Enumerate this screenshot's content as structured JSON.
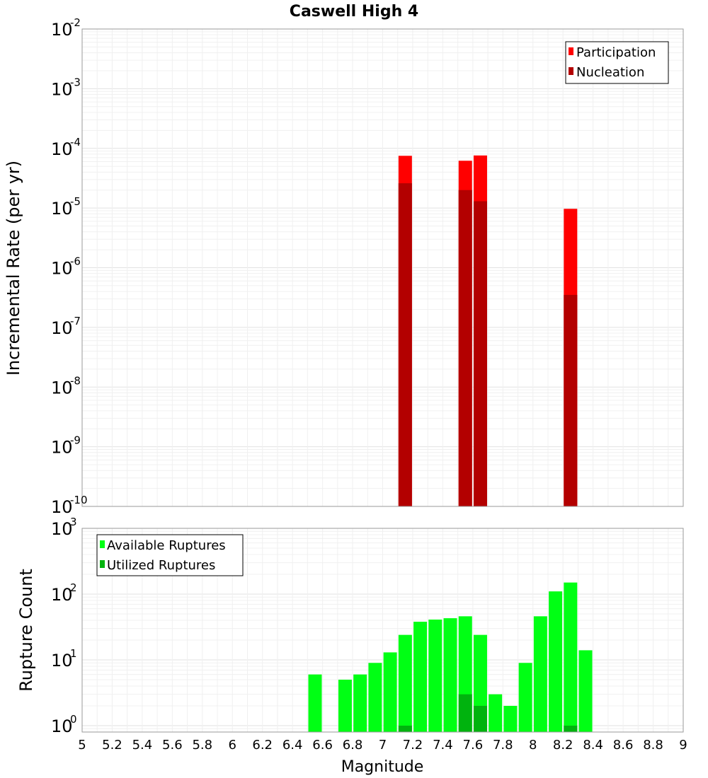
{
  "title": "Caswell High 4",
  "chart_data": [
    {
      "type": "bar",
      "ylabel": "Incremental Rate (per yr)",
      "yscale": "log",
      "ylim": [
        1e-10,
        0.01
      ],
      "xlim": [
        5,
        9
      ],
      "grid": true,
      "legend_position": "top-right",
      "series": [
        {
          "name": "Participation",
          "color": "#ff0000",
          "x": [
            7.15,
            7.55,
            7.65,
            8.25
          ],
          "values": [
            7.5e-05,
            6.2e-05,
            7.6e-05,
            9.7e-06
          ]
        },
        {
          "name": "Nucleation",
          "color": "#b30000",
          "x": [
            7.15,
            7.55,
            7.65,
            8.25
          ],
          "values": [
            2.6e-05,
            2e-05,
            1.3e-05,
            3.5e-07
          ]
        }
      ],
      "yticks": [
        {
          "base": "10",
          "exp": "-2"
        },
        {
          "base": "10",
          "exp": "-3"
        },
        {
          "base": "10",
          "exp": "-4"
        },
        {
          "base": "10",
          "exp": "-5"
        },
        {
          "base": "10",
          "exp": "-6"
        },
        {
          "base": "10",
          "exp": "-7"
        },
        {
          "base": "10",
          "exp": "-8"
        },
        {
          "base": "10",
          "exp": "-9"
        },
        {
          "base": "10",
          "exp": "-10"
        }
      ]
    },
    {
      "type": "bar",
      "ylabel": "Rupture Count",
      "xlabel": "Magnitude",
      "yscale": "log",
      "ylim": [
        0.8,
        1000
      ],
      "xlim": [
        5,
        9
      ],
      "grid": true,
      "legend_position": "top-left",
      "series": [
        {
          "name": "Available Ruptures",
          "color": "#00ff14",
          "x": [
            6.55,
            6.75,
            6.85,
            6.95,
            7.05,
            7.15,
            7.25,
            7.35,
            7.45,
            7.55,
            7.65,
            7.75,
            7.85,
            7.95,
            8.05,
            8.15,
            8.25,
            8.35
          ],
          "values": [
            6,
            5,
            6,
            9,
            13,
            24,
            38,
            41,
            43,
            46,
            24,
            3,
            2,
            9,
            46,
            110,
            150,
            14
          ]
        },
        {
          "name": "Utilized Ruptures",
          "color": "#00b30e",
          "x": [
            7.15,
            7.55,
            7.65,
            8.25
          ],
          "values": [
            1,
            3,
            2,
            1
          ]
        }
      ],
      "yticks": [
        {
          "base": "10",
          "exp": "3"
        },
        {
          "base": "10",
          "exp": "2"
        },
        {
          "base": "10",
          "exp": "1"
        },
        {
          "base": "10",
          "exp": "0"
        }
      ],
      "xticks": [
        "5",
        "5.2",
        "5.4",
        "5.6",
        "5.8",
        "6",
        "6.2",
        "6.4",
        "6.6",
        "6.8",
        "7",
        "7.2",
        "7.4",
        "7.6",
        "7.8",
        "8",
        "8.2",
        "8.4",
        "8.6",
        "8.8",
        "9"
      ]
    }
  ]
}
